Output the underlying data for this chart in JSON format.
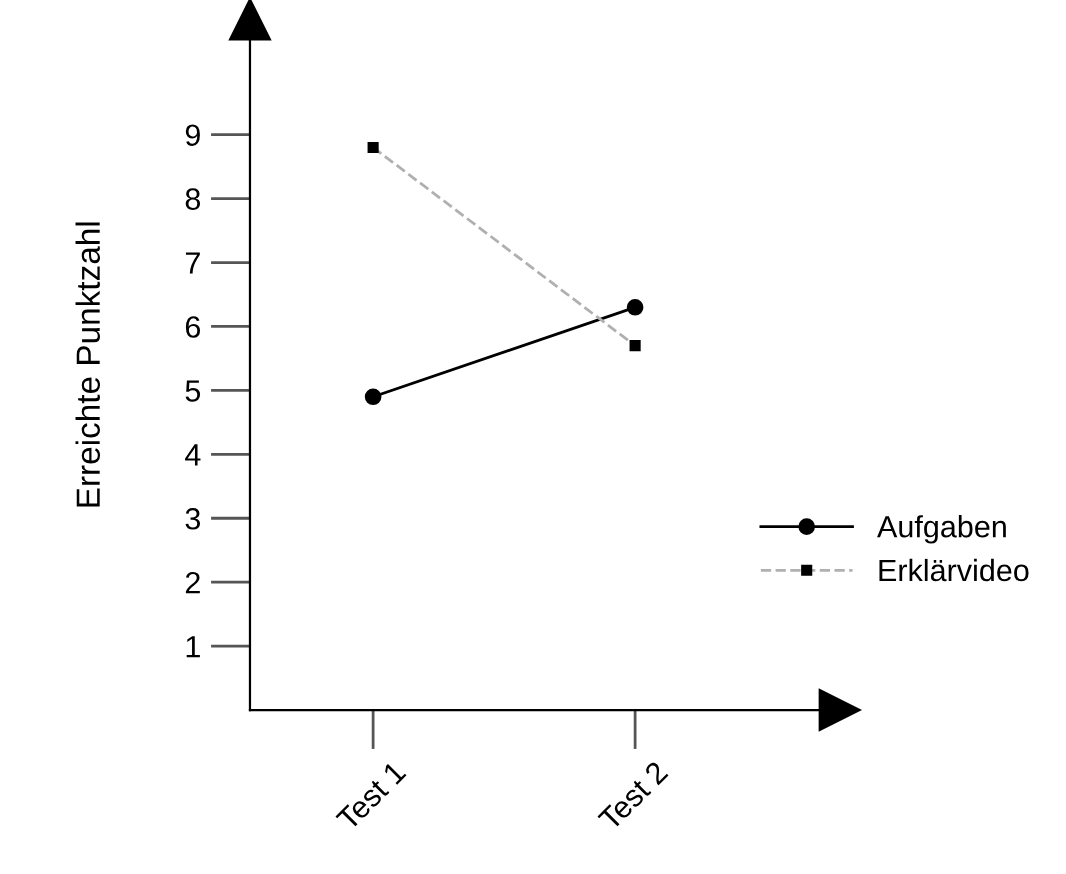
{
  "chart_data": {
    "type": "line",
    "ylabel": "Erreichte Punktzahl",
    "categories": [
      "Test 1",
      "Test 2"
    ],
    "series": [
      {
        "name": "Aufgaben",
        "color": "#000000",
        "values": [
          4.9,
          6.3
        ],
        "marker": "circle",
        "line_style": "solid"
      },
      {
        "name": "Erklärvideo",
        "color": "#b0b0b0",
        "values": [
          8.8,
          5.7
        ],
        "marker": "square",
        "line_style": "dashed"
      }
    ],
    "ylim": [
      0,
      10.8
    ],
    "yticks": [
      1,
      2,
      3,
      4,
      5,
      6,
      7,
      8,
      9
    ],
    "grid": false,
    "legend": "right"
  }
}
